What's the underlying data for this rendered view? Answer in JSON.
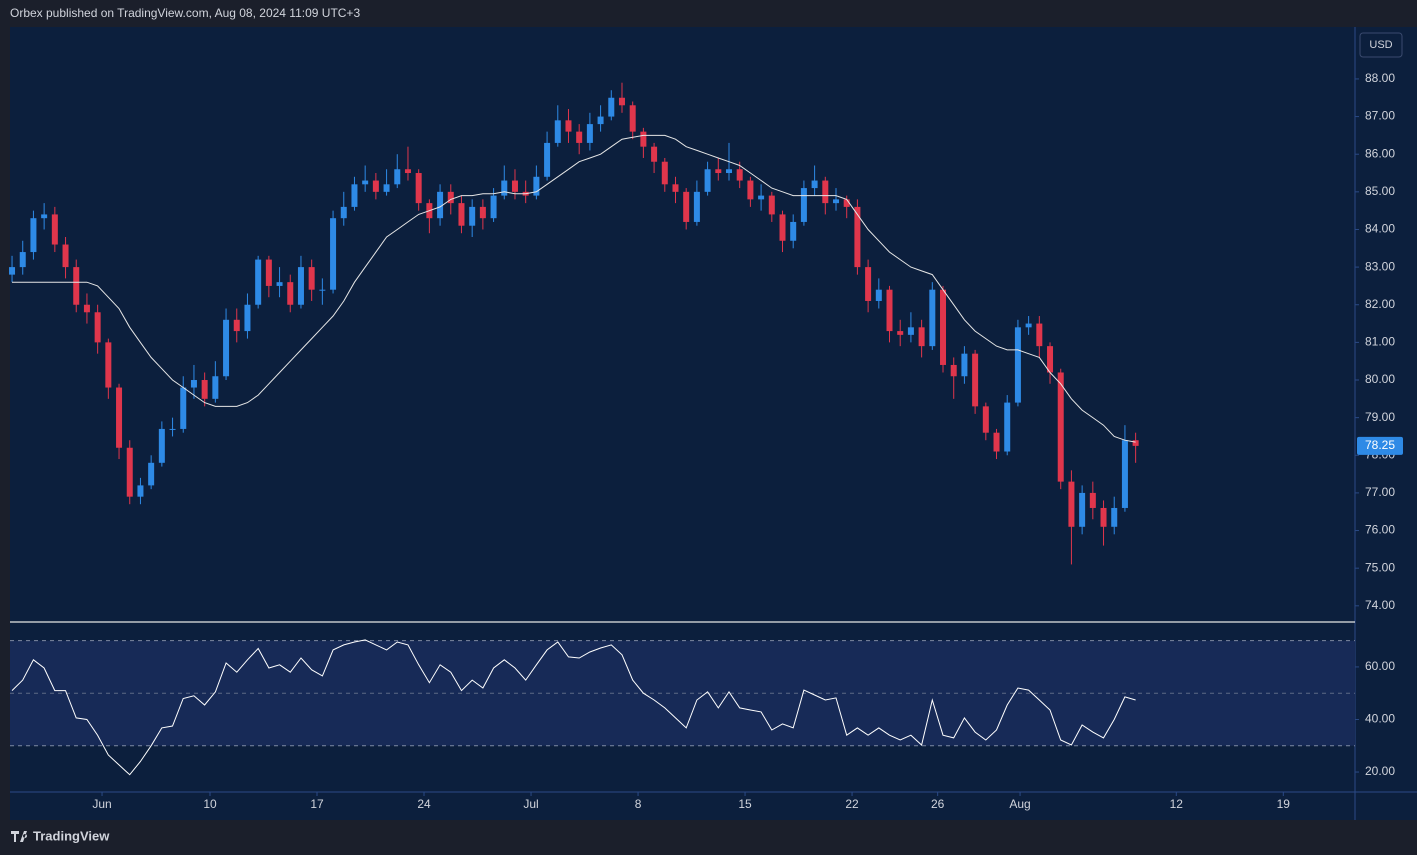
{
  "header": {
    "title": "Orbex published on TradingView.com, Aug 08, 2024 11:09 UTC+3"
  },
  "footer": {
    "brand": "TradingView"
  },
  "chart_data": [
    {
      "type": "candlestick",
      "axis_label": "USD",
      "up_color": "#2e8ae6",
      "down_color": "#e0364c",
      "open": [
        82.8,
        83.0,
        83.4,
        84.3,
        84.4,
        83.6,
        83.0,
        82.0,
        81.8,
        81.0,
        79.8,
        78.2,
        76.9,
        77.2,
        77.8,
        78.7,
        78.7,
        79.8,
        80.0,
        79.5,
        80.1,
        81.6,
        81.3,
        82.0,
        83.2,
        82.5,
        82.6,
        82.0,
        83.0,
        82.4,
        82.4,
        84.3,
        84.6,
        85.2,
        85.3,
        85.0,
        85.2,
        85.6,
        85.5,
        84.7,
        84.3,
        85.0,
        84.7,
        84.1,
        84.6,
        84.3,
        84.9,
        85.3,
        85.0,
        84.9,
        85.4,
        86.3,
        86.9,
        86.6,
        86.3,
        86.8,
        87.0,
        87.5,
        87.3,
        86.6,
        86.2,
        85.8,
        85.2,
        85.0,
        84.2,
        85.0,
        85.6,
        85.5,
        85.6,
        85.3,
        84.8,
        84.9,
        84.4,
        83.7,
        84.2,
        85.1,
        85.3,
        84.7,
        84.8,
        84.6,
        83.0,
        82.1,
        82.4,
        81.3,
        81.2,
        81.4,
        80.9,
        82.4,
        80.4,
        80.1,
        80.7,
        79.3,
        78.6,
        78.1,
        79.4,
        81.4,
        81.5,
        80.9,
        80.2,
        77.3,
        76.1,
        77.0,
        76.6,
        76.1,
        76.6,
        78.4
      ],
      "high": [
        83.3,
        83.7,
        84.5,
        84.7,
        84.6,
        83.8,
        83.2,
        82.3,
        82.0,
        81.1,
        79.9,
        78.4,
        77.4,
        78.0,
        78.9,
        79.0,
        80.1,
        80.4,
        80.2,
        80.5,
        81.9,
        81.9,
        82.3,
        83.3,
        83.3,
        83.0,
        82.8,
        83.3,
        83.2,
        82.7,
        84.5,
        85.0,
        85.4,
        85.7,
        85.5,
        85.6,
        86.0,
        86.2,
        85.6,
        84.8,
        85.2,
        85.2,
        84.9,
        84.8,
        84.8,
        85.1,
        85.7,
        85.6,
        85.3,
        85.7,
        86.6,
        87.3,
        87.2,
        86.8,
        87.1,
        87.3,
        87.7,
        87.9,
        87.4,
        86.7,
        86.3,
        85.9,
        85.4,
        85.1,
        85.3,
        85.8,
        85.9,
        86.3,
        85.8,
        85.4,
        85.2,
        85.0,
        84.5,
        84.4,
        85.3,
        85.7,
        85.4,
        85.1,
        84.9,
        84.8,
        83.2,
        82.7,
        82.5,
        81.6,
        81.8,
        81.6,
        82.6,
        82.5,
        80.6,
        80.9,
        80.8,
        79.4,
        78.7,
        79.6,
        81.6,
        81.7,
        81.7,
        81.0,
        80.3,
        77.6,
        77.2,
        77.3,
        76.8,
        76.9,
        78.8,
        78.6
      ],
      "low": [
        82.6,
        82.8,
        83.2,
        84.0,
        83.4,
        82.7,
        81.8,
        81.5,
        80.7,
        79.5,
        77.9,
        76.7,
        76.7,
        77.1,
        77.7,
        78.5,
        78.6,
        79.5,
        79.3,
        79.4,
        80.0,
        81.0,
        81.1,
        81.9,
        82.2,
        82.2,
        81.8,
        81.9,
        82.1,
        82.0,
        82.3,
        84.1,
        84.5,
        85.0,
        84.8,
        84.9,
        85.1,
        85.3,
        84.5,
        83.9,
        84.1,
        84.4,
        83.9,
        83.8,
        84.0,
        84.2,
        84.8,
        84.8,
        84.7,
        84.8,
        85.3,
        86.2,
        86.3,
        86.0,
        86.1,
        86.6,
        86.9,
        87.1,
        86.4,
        85.9,
        85.5,
        85.0,
        84.7,
        84.0,
        84.1,
        84.9,
        85.3,
        85.3,
        85.1,
        84.6,
        84.5,
        84.2,
        83.4,
        83.5,
        84.1,
        84.9,
        84.4,
        84.5,
        84.3,
        82.8,
        81.8,
        81.9,
        81.0,
        80.9,
        81.0,
        80.6,
        80.8,
        80.2,
        79.5,
        79.9,
        79.1,
        78.4,
        77.9,
        78.0,
        79.3,
        81.2,
        80.6,
        79.9,
        77.1,
        75.1,
        75.9,
        76.3,
        75.6,
        75.9,
        76.5,
        77.8
      ],
      "close": [
        83.0,
        83.4,
        84.3,
        84.4,
        83.6,
        83.0,
        82.0,
        81.8,
        81.0,
        79.8,
        78.2,
        76.9,
        77.2,
        77.8,
        78.7,
        78.7,
        79.8,
        80.0,
        79.5,
        80.1,
        81.6,
        81.3,
        82.0,
        83.2,
        82.5,
        82.6,
        82.0,
        83.0,
        82.4,
        82.4,
        84.3,
        84.6,
        85.2,
        85.3,
        85.0,
        85.2,
        85.6,
        85.5,
        84.7,
        84.3,
        85.0,
        84.7,
        84.1,
        84.6,
        84.3,
        84.9,
        85.3,
        85.0,
        84.9,
        85.4,
        86.3,
        86.9,
        86.6,
        86.3,
        86.8,
        87.0,
        87.5,
        87.3,
        86.6,
        86.2,
        85.8,
        85.2,
        85.0,
        84.2,
        85.0,
        85.6,
        85.5,
        85.6,
        85.3,
        84.8,
        84.9,
        84.4,
        83.7,
        84.2,
        85.1,
        85.3,
        84.7,
        84.8,
        84.6,
        83.0,
        82.1,
        82.4,
        81.3,
        81.2,
        81.4,
        80.9,
        82.4,
        80.4,
        80.1,
        80.7,
        79.3,
        78.6,
        78.1,
        79.4,
        81.4,
        81.5,
        80.9,
        80.2,
        77.3,
        76.1,
        77.0,
        76.6,
        76.1,
        76.6,
        78.4,
        78.25
      ],
      "overlay": {
        "type": "line",
        "color": "#e6e6e6",
        "values": [
          82.6,
          82.6,
          82.6,
          82.6,
          82.6,
          82.6,
          82.6,
          82.6,
          82.5,
          82.2,
          81.9,
          81.4,
          81.0,
          80.6,
          80.3,
          80.0,
          79.8,
          79.6,
          79.4,
          79.3,
          79.3,
          79.3,
          79.4,
          79.6,
          79.9,
          80.2,
          80.5,
          80.8,
          81.1,
          81.4,
          81.7,
          82.1,
          82.6,
          83.0,
          83.4,
          83.8,
          84.0,
          84.2,
          84.4,
          84.5,
          84.6,
          84.8,
          84.9,
          84.9,
          84.95,
          84.95,
          85.0,
          84.95,
          84.95,
          85.0,
          85.2,
          85.4,
          85.6,
          85.8,
          85.9,
          86.0,
          86.2,
          86.4,
          86.45,
          86.5,
          86.5,
          86.5,
          86.4,
          86.2,
          86.1,
          86.0,
          85.9,
          85.8,
          85.7,
          85.5,
          85.3,
          85.1,
          85.0,
          84.9,
          84.9,
          84.9,
          84.9,
          84.9,
          84.8,
          84.4,
          84.0,
          83.7,
          83.4,
          83.2,
          83.0,
          82.9,
          82.8,
          82.4,
          82.0,
          81.6,
          81.3,
          81.1,
          80.9,
          80.8,
          80.8,
          80.7,
          80.6,
          80.2,
          79.9,
          79.5,
          79.2,
          79.0,
          78.8,
          78.5,
          78.4,
          78.35
        ]
      },
      "xlim": [
        -0.19,
        125.5
      ],
      "ylim": [
        73.57,
        89.38
      ],
      "yticks": [
        {
          "value": 74,
          "label": "74.00"
        },
        {
          "value": 75,
          "label": "75.00"
        },
        {
          "value": 76,
          "label": "76.00"
        },
        {
          "value": 77,
          "label": "77.00"
        },
        {
          "value": 78,
          "label": "78.00"
        },
        {
          "value": 79,
          "label": "79.00"
        },
        {
          "value": 80,
          "label": "80.00"
        },
        {
          "value": 81,
          "label": "81.00"
        },
        {
          "value": 82,
          "label": "82.00"
        },
        {
          "value": 83,
          "label": "83.00"
        },
        {
          "value": 84,
          "label": "84.00"
        },
        {
          "value": 85,
          "label": "85.00"
        },
        {
          "value": 86,
          "label": "86.00"
        },
        {
          "value": 87,
          "label": "87.00"
        },
        {
          "value": 88,
          "label": "88.00"
        }
      ]
    },
    {
      "type": "line",
      "color": "#ffffff",
      "band_fill": "#172a57",
      "values": [
        51,
        55,
        62.7,
        59.6,
        51,
        51,
        40.6,
        40,
        34,
        26.5,
        22.7,
        19,
        24,
        30,
        36.8,
        37.5,
        48,
        49,
        45.5,
        50.5,
        61.5,
        58,
        62.7,
        67,
        59.6,
        60.8,
        58,
        63.4,
        58.9,
        56.6,
        66.5,
        68.4,
        69.5,
        70.3,
        68.4,
        66.5,
        69.5,
        68.4,
        60.8,
        54,
        60.8,
        58,
        51,
        55,
        52,
        59.6,
        62.7,
        59.6,
        55,
        60.8,
        66.5,
        69.5,
        63.8,
        63.4,
        65.7,
        67.2,
        68.4,
        64.6,
        55,
        50,
        47.4,
        44.4,
        40.6,
        36.8,
        47.4,
        50.5,
        44.4,
        50.5,
        44.4,
        43.6,
        42.9,
        36,
        38.3,
        36.8,
        51.2,
        49.3,
        47.4,
        48.2,
        34,
        36.8,
        34,
        36.8,
        34,
        32.2,
        34,
        30.3,
        47.4,
        34,
        33,
        40.6,
        35.2,
        32.2,
        36,
        45.5,
        52,
        51.2,
        47.4,
        43.6,
        32.2,
        30.3,
        37.9,
        35.2,
        33,
        40,
        48.6,
        47.4
      ],
      "bands": [
        30,
        70
      ],
      "midline": 50,
      "xlim": [
        -0.19,
        125.5
      ],
      "ylim": [
        12.4,
        77.1
      ],
      "yticks": [
        {
          "value": 20,
          "label": "20.00"
        },
        {
          "value": 40,
          "label": "40.00"
        },
        {
          "value": 60,
          "label": "60.00"
        }
      ],
      "xticks": [
        {
          "value": 8.41,
          "label": "Jun"
        },
        {
          "value": 18.5,
          "label": "10"
        },
        {
          "value": 28.5,
          "label": "17"
        },
        {
          "value": 38.5,
          "label": "24"
        },
        {
          "value": 48.5,
          "label": "Jul"
        },
        {
          "value": 58.5,
          "label": "8"
        },
        {
          "value": 68.5,
          "label": "15"
        },
        {
          "value": 78.5,
          "label": "22"
        },
        {
          "value": 86.5,
          "label": "26"
        },
        {
          "value": 94.2,
          "label": "Aug"
        },
        {
          "value": 108.8,
          "label": "12"
        },
        {
          "value": 118.8,
          "label": "19"
        }
      ]
    }
  ]
}
